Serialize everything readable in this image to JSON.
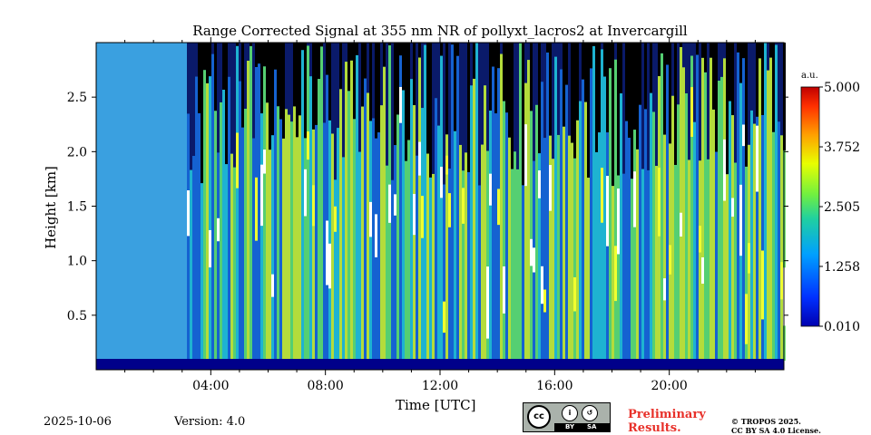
{
  "chart_data": {
    "type": "heatmap",
    "title": "Range Corrected Signal at 355 nm NR of pollyxt_lacros2 at Invercargill",
    "xlabel": "Time [UTC]",
    "ylabel": "Height [km]",
    "xlim": [
      0,
      24
    ],
    "ylim": [
      0,
      3.0
    ],
    "x_ticks": [
      {
        "value": 4,
        "label": "04:00"
      },
      {
        "value": 8,
        "label": "08:00"
      },
      {
        "value": 12,
        "label": "12:00"
      },
      {
        "value": 16,
        "label": "16:00"
      },
      {
        "value": 20,
        "label": "20:00"
      }
    ],
    "y_ticks": [
      {
        "value": 0.5,
        "label": "0.5"
      },
      {
        "value": 1.0,
        "label": "1.0"
      },
      {
        "value": 1.5,
        "label": "1.5"
      },
      {
        "value": 2.0,
        "label": "2.0"
      },
      {
        "value": 2.5,
        "label": "2.5"
      }
    ],
    "colorbar": {
      "unit": "a.u.",
      "min": 0.01,
      "max": 5.0,
      "colormap": "jet",
      "ticks": [
        {
          "value": 0.01,
          "label": "0.010"
        },
        {
          "value": 1.258,
          "label": "1.258"
        },
        {
          "value": 2.505,
          "label": "2.505"
        },
        {
          "value": 3.752,
          "label": "3.752"
        },
        {
          "value": 5.0,
          "label": "5.000"
        }
      ]
    }
  },
  "footer": {
    "date": "2025-10-06",
    "version": "Version: 4.0",
    "preliminary_line1": "Preliminary",
    "preliminary_line2": "Results.",
    "copyright_line1": "© TROPOS 2025.",
    "copyright_line2": "CC BY SA 4.0 License.",
    "license_badge": {
      "cc": "cc",
      "by": "BY",
      "sa": "SA"
    }
  }
}
